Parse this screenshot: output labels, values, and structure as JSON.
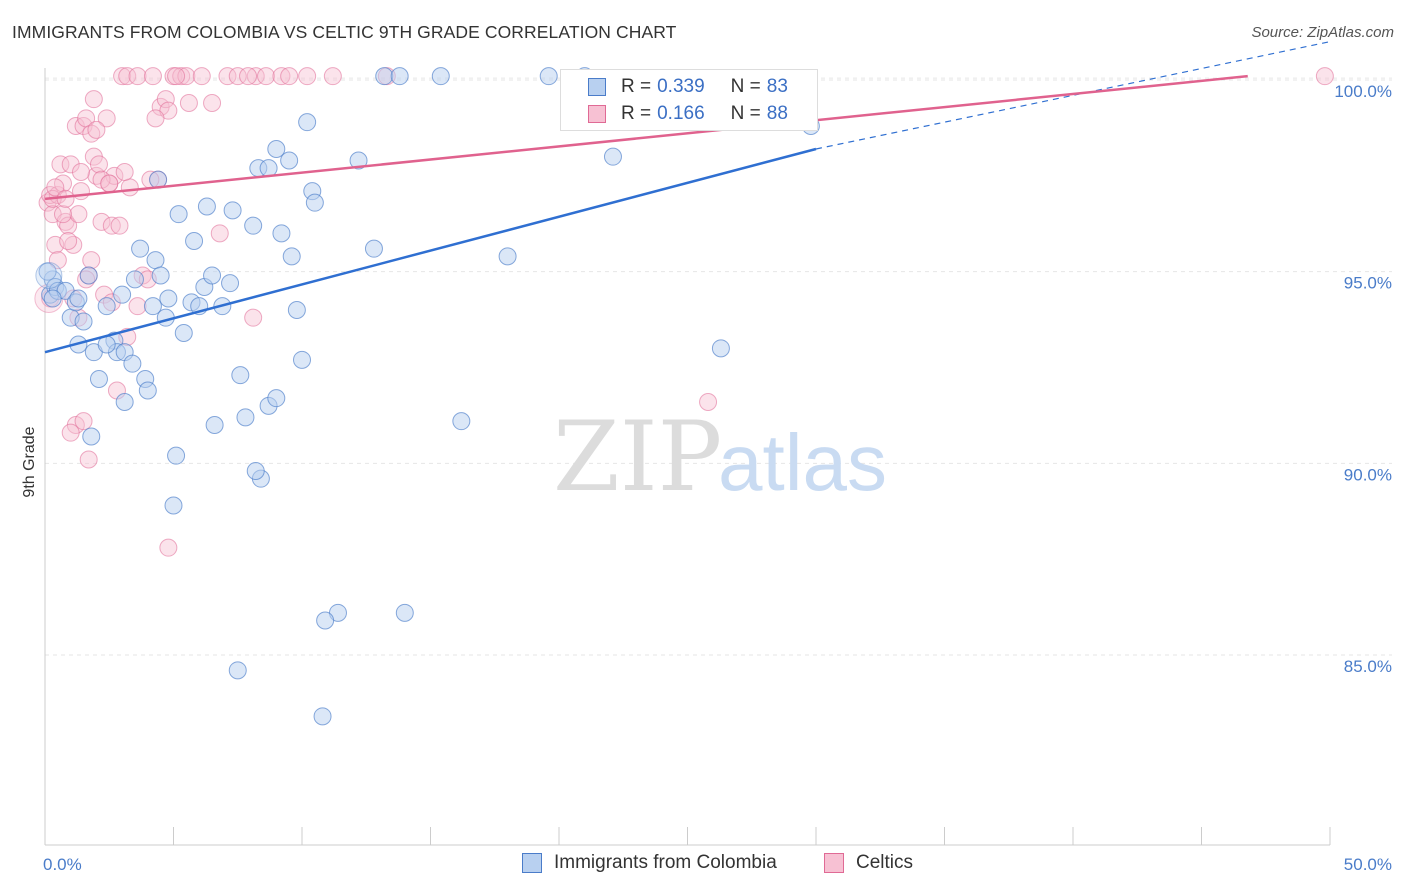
{
  "title": "IMMIGRANTS FROM COLOMBIA VS CELTIC 9TH GRADE CORRELATION CHART",
  "source": "Source: ZipAtlas.com",
  "watermark": {
    "zip": "ZIP",
    "atlas": "atlas"
  },
  "colors": {
    "blue": "#4a7cc9",
    "blue_fill": "#b8d0f0",
    "blue_line": "#2f6fd1",
    "pink": "#e06a95",
    "pink_fill": "#f7c1d3",
    "pink_line": "#e0628e",
    "grid": "#e6e6e6"
  },
  "legend": {
    "rows": [
      {
        "r_label": "R =",
        "r_value": "0.339",
        "n_label": "N =",
        "n_value": "83"
      },
      {
        "r_label": "R =",
        "r_value": "0.166",
        "n_label": "N =",
        "n_value": "88"
      }
    ]
  },
  "bottom_legend": {
    "series_a": "Immigrants from Colombia",
    "series_b": "Celtics"
  },
  "chart_data": {
    "type": "scatter",
    "title": "IMMIGRANTS FROM COLOMBIA VS CELTIC 9TH GRADE CORRELATION CHART",
    "xlabel": "",
    "ylabel": "9th Grade",
    "xlim": [
      0,
      50
    ],
    "ylim": [
      80.0,
      100.7
    ],
    "x_tick_labels": [
      "0.0%",
      "50.0%"
    ],
    "y_tick_labels": [
      "85.0%",
      "90.0%",
      "95.0%",
      "100.0%"
    ],
    "y_ticks": [
      85,
      90,
      95,
      100
    ],
    "grid": true,
    "series": [
      {
        "name": "Immigrants from Colombia",
        "color": "blue",
        "R": 0.339,
        "N": 83,
        "trend": {
          "x": [
            0,
            30
          ],
          "y": [
            92.9,
            98.2
          ],
          "dashed_to": [
            50,
            101.0
          ]
        },
        "points": [
          [
            0.2,
            94.4
          ],
          [
            0.3,
            94.8
          ],
          [
            0.4,
            94.6
          ],
          [
            0.5,
            94.5
          ],
          [
            0.8,
            94.5
          ],
          [
            1.0,
            93.8
          ],
          [
            1.2,
            94.2
          ],
          [
            1.3,
            93.1
          ],
          [
            1.5,
            93.7
          ],
          [
            1.7,
            94.9
          ],
          [
            1.9,
            92.9
          ],
          [
            2.1,
            92.2
          ],
          [
            2.4,
            94.1
          ],
          [
            2.7,
            93.2
          ],
          [
            2.8,
            92.9
          ],
          [
            3.0,
            94.4
          ],
          [
            3.1,
            92.9
          ],
          [
            3.4,
            92.6
          ],
          [
            3.5,
            94.8
          ],
          [
            3.7,
            95.6
          ],
          [
            3.9,
            92.2
          ],
          [
            4.0,
            91.9
          ],
          [
            4.2,
            94.1
          ],
          [
            4.3,
            95.3
          ],
          [
            4.5,
            94.9
          ],
          [
            4.7,
            93.8
          ],
          [
            4.8,
            94.3
          ],
          [
            5.2,
            96.5
          ],
          [
            5.4,
            93.4
          ],
          [
            5.7,
            94.2
          ],
          [
            5.8,
            95.8
          ],
          [
            6.0,
            94.1
          ],
          [
            6.2,
            94.6
          ],
          [
            6.3,
            96.7
          ],
          [
            6.5,
            94.9
          ],
          [
            6.9,
            94.1
          ],
          [
            7.2,
            94.7
          ],
          [
            7.3,
            96.6
          ],
          [
            7.8,
            91.2
          ],
          [
            8.1,
            96.2
          ],
          [
            8.3,
            97.7
          ],
          [
            8.7,
            97.7
          ],
          [
            9.0,
            98.2
          ],
          [
            9.2,
            96.0
          ],
          [
            9.5,
            97.9
          ],
          [
            9.6,
            95.4
          ],
          [
            9.8,
            94.0
          ],
          [
            10.0,
            92.7
          ],
          [
            10.2,
            98.9
          ],
          [
            10.4,
            97.1
          ],
          [
            10.5,
            96.8
          ],
          [
            11.4,
            86.1
          ],
          [
            12.2,
            97.9
          ],
          [
            12.8,
            95.6
          ],
          [
            13.2,
            100.1
          ],
          [
            13.8,
            100.1
          ],
          [
            14.0,
            86.1
          ],
          [
            15.4,
            100.1
          ],
          [
            16.2,
            91.1
          ],
          [
            18.0,
            95.4
          ],
          [
            19.6,
            100.1
          ],
          [
            21.0,
            100.1
          ],
          [
            22.1,
            98.0
          ],
          [
            26.3,
            93.0
          ],
          [
            29.8,
            98.8
          ],
          [
            1.8,
            90.7
          ],
          [
            5.1,
            90.2
          ],
          [
            6.6,
            91.0
          ],
          [
            7.6,
            92.3
          ],
          [
            8.4,
            89.6
          ],
          [
            8.7,
            91.5
          ],
          [
            9.0,
            91.7
          ],
          [
            10.8,
            83.4
          ],
          [
            7.5,
            84.6
          ],
          [
            5.0,
            88.9
          ],
          [
            3.1,
            91.6
          ],
          [
            8.2,
            89.8
          ],
          [
            0.1,
            95.0
          ],
          [
            0.3,
            94.3
          ],
          [
            1.3,
            94.3
          ],
          [
            2.4,
            93.1
          ],
          [
            4.4,
            97.4
          ],
          [
            10.9,
            85.9
          ]
        ]
      },
      {
        "name": "Celtics",
        "color": "pink",
        "R": 0.166,
        "N": 88,
        "trend": {
          "x": [
            0,
            46.8
          ],
          "y": [
            96.9,
            100.1
          ]
        },
        "points": [
          [
            0.1,
            96.8
          ],
          [
            0.2,
            97.0
          ],
          [
            0.3,
            96.5
          ],
          [
            0.4,
            95.7
          ],
          [
            0.5,
            97.0
          ],
          [
            0.6,
            97.8
          ],
          [
            0.7,
            97.3
          ],
          [
            0.8,
            96.3
          ],
          [
            0.9,
            96.2
          ],
          [
            1.0,
            97.8
          ],
          [
            1.1,
            95.7
          ],
          [
            1.2,
            98.8
          ],
          [
            1.3,
            96.5
          ],
          [
            1.4,
            97.1
          ],
          [
            1.5,
            98.8
          ],
          [
            1.6,
            99.0
          ],
          [
            1.7,
            94.9
          ],
          [
            1.8,
            98.6
          ],
          [
            1.9,
            98.0
          ],
          [
            2.0,
            97.5
          ],
          [
            2.1,
            97.8
          ],
          [
            2.2,
            96.3
          ],
          [
            2.3,
            94.4
          ],
          [
            2.4,
            99.0
          ],
          [
            2.5,
            97.3
          ],
          [
            2.6,
            96.2
          ],
          [
            2.7,
            97.5
          ],
          [
            2.8,
            91.9
          ],
          [
            3.0,
            100.1
          ],
          [
            3.2,
            100.1
          ],
          [
            3.6,
            100.1
          ],
          [
            3.8,
            94.9
          ],
          [
            4.0,
            94.8
          ],
          [
            4.2,
            100.1
          ],
          [
            4.4,
            97.4
          ],
          [
            4.5,
            99.3
          ],
          [
            4.7,
            99.5
          ],
          [
            4.8,
            99.2
          ],
          [
            5.0,
            100.1
          ],
          [
            5.3,
            100.1
          ],
          [
            5.5,
            100.1
          ],
          [
            5.6,
            99.4
          ],
          [
            6.5,
            99.4
          ],
          [
            6.8,
            96.0
          ],
          [
            7.1,
            100.1
          ],
          [
            7.5,
            100.1
          ],
          [
            8.2,
            100.1
          ],
          [
            8.6,
            100.1
          ],
          [
            9.2,
            100.1
          ],
          [
            10.2,
            100.1
          ],
          [
            11.2,
            100.1
          ],
          [
            13.3,
            100.1
          ],
          [
            1.2,
            91.0
          ],
          [
            1.5,
            91.1
          ],
          [
            1.7,
            90.1
          ],
          [
            3.2,
            93.3
          ],
          [
            4.8,
            87.8
          ],
          [
            8.1,
            93.8
          ],
          [
            25.8,
            91.6
          ],
          [
            49.8,
            100.1
          ],
          [
            0.3,
            96.9
          ],
          [
            0.5,
            95.3
          ],
          [
            0.7,
            96.5
          ],
          [
            0.9,
            95.8
          ],
          [
            1.1,
            94.3
          ],
          [
            1.3,
            93.8
          ],
          [
            1.6,
            94.8
          ],
          [
            1.9,
            99.5
          ],
          [
            2.0,
            98.7
          ],
          [
            2.2,
            97.4
          ],
          [
            2.5,
            97.3
          ],
          [
            2.9,
            96.2
          ],
          [
            3.3,
            97.2
          ],
          [
            3.6,
            94.1
          ],
          [
            4.1,
            97.4
          ],
          [
            1.0,
            90.8
          ],
          [
            0.4,
            97.2
          ],
          [
            0.8,
            96.9
          ],
          [
            1.4,
            97.6
          ],
          [
            1.8,
            95.3
          ],
          [
            2.6,
            94.2
          ],
          [
            3.1,
            97.6
          ],
          [
            4.3,
            99.0
          ],
          [
            5.1,
            100.1
          ],
          [
            6.1,
            100.1
          ],
          [
            7.9,
            100.1
          ],
          [
            9.5,
            100.1
          ],
          [
            0.2,
            94.3
          ]
        ]
      }
    ]
  }
}
